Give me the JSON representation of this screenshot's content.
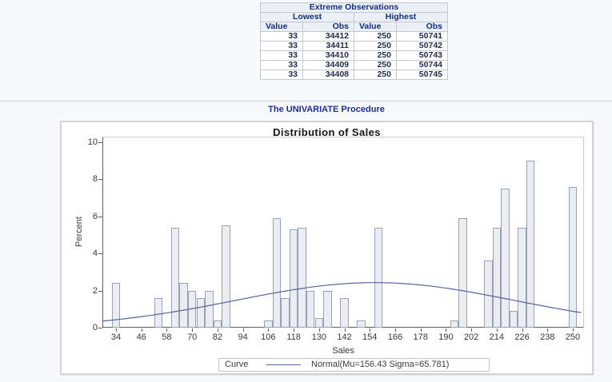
{
  "report": {
    "procedure_title": "The UNIVARIATE Procedure"
  },
  "extreme_table": {
    "title": "Extreme Observations",
    "group_headers": [
      "Lowest",
      "Highest"
    ],
    "col_headers": [
      "Value",
      "Obs",
      "Value",
      "Obs"
    ],
    "rows": [
      [
        "33",
        "34412",
        "250",
        "50741"
      ],
      [
        "33",
        "34411",
        "250",
        "50742"
      ],
      [
        "33",
        "34410",
        "250",
        "50743"
      ],
      [
        "33",
        "34409",
        "250",
        "50744"
      ],
      [
        "33",
        "34408",
        "250",
        "50745"
      ]
    ]
  },
  "chart_data": {
    "type": "bar",
    "title": "Distribution of Sales",
    "xlabel": "Sales",
    "ylabel": "Percent",
    "x_ticks": [
      34,
      46,
      58,
      70,
      82,
      94,
      106,
      118,
      130,
      142,
      154,
      166,
      178,
      190,
      202,
      214,
      226,
      238,
      250
    ],
    "y_ticks": [
      0,
      2,
      4,
      6,
      8,
      10
    ],
    "xlim": [
      27.5,
      255
    ],
    "ylim": [
      0,
      10.3
    ],
    "bin_width": 4,
    "grid": false,
    "bars": [
      {
        "midpoint": 34,
        "percent": 2.4
      },
      {
        "midpoint": 54,
        "percent": 1.6
      },
      {
        "midpoint": 62,
        "percent": 5.4
      },
      {
        "midpoint": 66,
        "percent": 2.4
      },
      {
        "midpoint": 70,
        "percent": 2.0
      },
      {
        "midpoint": 74,
        "percent": 1.6
      },
      {
        "midpoint": 78,
        "percent": 2.0
      },
      {
        "midpoint": 82,
        "percent": 0.4
      },
      {
        "midpoint": 86,
        "percent": 5.5
      },
      {
        "midpoint": 106,
        "percent": 0.4
      },
      {
        "midpoint": 110,
        "percent": 5.9
      },
      {
        "midpoint": 114,
        "percent": 1.6
      },
      {
        "midpoint": 118,
        "percent": 5.3
      },
      {
        "midpoint": 122,
        "percent": 5.4
      },
      {
        "midpoint": 126,
        "percent": 2.0
      },
      {
        "midpoint": 130,
        "percent": 0.5
      },
      {
        "midpoint": 134,
        "percent": 2.0
      },
      {
        "midpoint": 142,
        "percent": 1.6
      },
      {
        "midpoint": 150,
        "percent": 0.4
      },
      {
        "midpoint": 158,
        "percent": 5.4
      },
      {
        "midpoint": 194,
        "percent": 0.4
      },
      {
        "midpoint": 198,
        "percent": 5.9
      },
      {
        "midpoint": 210,
        "percent": 3.6
      },
      {
        "midpoint": 214,
        "percent": 5.4
      },
      {
        "midpoint": 218,
        "percent": 7.5
      },
      {
        "midpoint": 222,
        "percent": 0.9
      },
      {
        "midpoint": 226,
        "percent": 5.4
      },
      {
        "midpoint": 230,
        "percent": 9.0
      },
      {
        "midpoint": 250,
        "percent": 7.6
      }
    ],
    "curve": {
      "type": "normal",
      "mu": 156.43,
      "sigma": 65.781,
      "legend_title": "Curve",
      "legend_label": "Normal(Mu=156.43 Sigma=65.781)"
    },
    "legend_position": "bottom-center",
    "colors": {
      "bar_fill": "#eaedf4",
      "bar_border": "#9aa2b0",
      "curve": "#5565a3",
      "axis": "#5c5e63",
      "header_bg": "#ebf0f7",
      "header_text": "#112e7c",
      "proc_title_text": "#1c2f96",
      "page_bg": "#f8f9fc"
    }
  }
}
